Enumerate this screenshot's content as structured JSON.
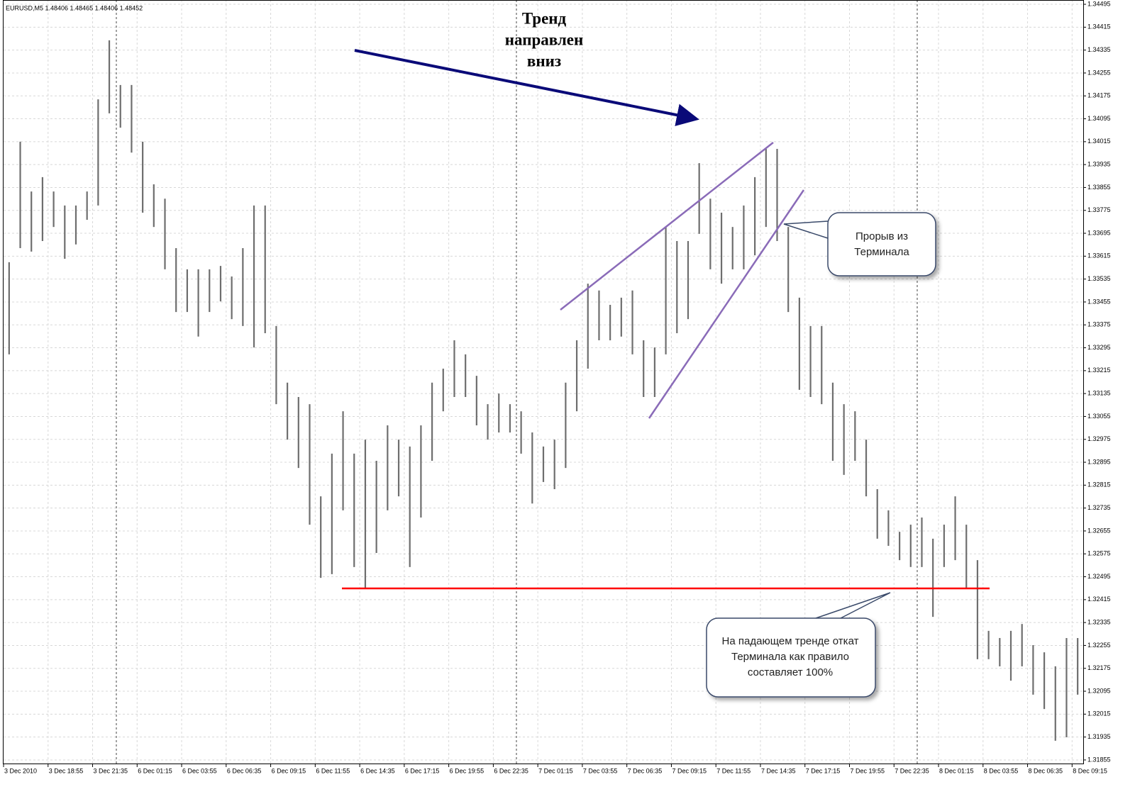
{
  "chart_data": {
    "type": "ohlc",
    "symbol_label": "EURUSD,M5  1.48406 1.48465 1.48406 1.48452",
    "title_lines": [
      "Тренд",
      "направлен",
      "вниз"
    ],
    "annotations": [
      [
        "Прорыв из",
        "Терминала"
      ],
      [
        "На падающем тренде откат",
        "Терминала как правило",
        "составляет 100%"
      ]
    ],
    "color": "#6e6e6e",
    "grid": true,
    "ylim": [
      1.3184,
      1.3451
    ],
    "yticks": [
      1.34495,
      1.34415,
      1.34335,
      1.34255,
      1.34175,
      1.34095,
      1.34015,
      1.33935,
      1.33855,
      1.33775,
      1.33695,
      1.33615,
      1.33535,
      1.33455,
      1.33375,
      1.33295,
      1.33215,
      1.33135,
      1.33055,
      1.32975,
      1.32895,
      1.32815,
      1.32735,
      1.32655,
      1.32575,
      1.32495,
      1.32415,
      1.32335,
      1.32255,
      1.32175,
      1.32095,
      1.32015,
      1.31935,
      1.31855
    ],
    "categories": [
      "3 Dec 2010",
      null,
      null,
      null,
      "3 Dec 18:55",
      null,
      null,
      null,
      "3 Dec 21:35",
      null,
      null,
      null,
      "6 Dec 01:15",
      null,
      null,
      null,
      "6 Dec 03:55",
      null,
      null,
      null,
      "6 Dec 06:35",
      null,
      null,
      null,
      "6 Dec 09:15",
      null,
      null,
      null,
      "6 Dec 11:55",
      null,
      null,
      null,
      "6 Dec 14:35",
      null,
      null,
      null,
      "6 Dec 17:15",
      null,
      null,
      null,
      "6 Dec 19:55",
      null,
      null,
      null,
      "6 Dec 22:35",
      null,
      null,
      null,
      "7 Dec 01:15",
      null,
      null,
      null,
      "7 Dec 03:55",
      null,
      null,
      null,
      "7 Dec 06:35",
      null,
      null,
      null,
      "7 Dec 09:15",
      null,
      null,
      null,
      "7 Dec 11:55",
      null,
      null,
      null,
      "7 Dec 14:35",
      null,
      null,
      null,
      "7 Dec 17:15",
      null,
      null,
      null,
      "7 Dec 19:55",
      null,
      null,
      null,
      "7 Dec 22:35",
      null,
      null,
      null,
      "8 Dec 01:15",
      null,
      null,
      null,
      "8 Dec 03:55",
      null,
      null,
      null,
      "8 Dec 06:35",
      null,
      null,
      null,
      "8 Dec 09:15"
    ],
    "high": [
      1.33594,
      1.34015,
      1.33841,
      1.33891,
      1.33841,
      1.33792,
      1.33792,
      1.33841,
      1.34163,
      1.34369,
      1.34213,
      1.34213,
      1.34015,
      1.33866,
      1.33816,
      1.33643,
      1.33569,
      1.33569,
      1.33569,
      1.33581,
      1.33544,
      1.33643,
      1.33792,
      1.33792,
      1.33371,
      1.33173,
      1.33123,
      1.33098,
      1.32776,
      1.32925,
      1.33073,
      1.32925,
      1.32974,
      1.329,
      1.33024,
      1.32974,
      1.3295,
      1.33024,
      1.33173,
      1.33222,
      1.33321,
      1.33272,
      1.33197,
      1.33098,
      1.33135,
      1.33098,
      1.33073,
      1.32999,
      1.3295,
      1.32974,
      1.33173,
      1.33321,
      1.33519,
      1.33495,
      1.33445,
      1.3347,
      1.33495,
      1.33321,
      1.33296,
      1.33717,
      1.33668,
      1.33668,
      1.3394,
      1.33816,
      1.33767,
      1.33717,
      1.33792,
      1.33891,
      1.3399,
      1.3399,
      1.33717,
      1.3347,
      1.33371,
      1.33371,
      1.33173,
      1.33098,
      1.33073,
      1.32974,
      1.32801,
      1.32727,
      1.32652,
      1.32677,
      1.32702,
      1.32628,
      1.32677,
      1.32776,
      1.32677,
      1.32553,
      1.32306,
      1.32281,
      1.32306,
      1.3233,
      1.32256,
      1.32231,
      1.32182,
      1.32281,
      1.32281
    ],
    "low": [
      1.33272,
      1.33643,
      1.33631,
      1.33668,
      1.33717,
      1.33606,
      1.33656,
      1.33742,
      1.33792,
      1.34114,
      1.34064,
      1.33977,
      1.33767,
      1.33717,
      1.33569,
      1.3342,
      1.3342,
      1.33334,
      1.3342,
      1.33457,
      1.33395,
      1.33371,
      1.33296,
      1.33346,
      1.33098,
      1.32974,
      1.32875,
      1.32677,
      1.32491,
      1.32504,
      1.32727,
      1.32529,
      1.32454,
      1.32578,
      1.32727,
      1.32776,
      1.32529,
      1.32702,
      1.329,
      1.33073,
      1.33123,
      1.33123,
      1.33024,
      1.32974,
      1.32999,
      1.32999,
      1.32925,
      1.32751,
      1.32826,
      1.32801,
      1.32875,
      1.33073,
      1.33222,
      1.33321,
      1.33321,
      1.33334,
      1.33272,
      1.33123,
      1.33123,
      1.33272,
      1.33346,
      1.33395,
      1.33693,
      1.33569,
      1.33519,
      1.33569,
      1.33569,
      1.33618,
      1.33717,
      1.33668,
      1.3342,
      1.33148,
      1.33123,
      1.33098,
      1.329,
      1.32851,
      1.329,
      1.32776,
      1.32628,
      1.32603,
      1.32553,
      1.32529,
      1.32529,
      1.32355,
      1.32529,
      1.32553,
      1.32454,
      1.32207,
      1.32207,
      1.32182,
      1.32132,
      1.32182,
      1.32083,
      1.32033,
      1.31922,
      1.31934,
      1.32083
    ]
  }
}
